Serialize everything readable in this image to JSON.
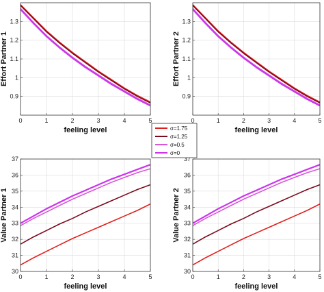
{
  "legend": {
    "entries": [
      "σ=1.75",
      "σ=1.25",
      "σ=0.5",
      "σ=0"
    ]
  },
  "colors": {
    "series": [
      "#e0201c",
      "#7a0a1e",
      "#d658d8",
      "#cc33ee"
    ]
  },
  "chart_data": [
    {
      "type": "line",
      "xlabel": "feeling level",
      "ylabel": "Effort Partner 1",
      "xlim": [
        0,
        5
      ],
      "ylim": [
        0.8,
        1.4
      ],
      "xticks": [
        "0",
        "1",
        "2",
        "3",
        "4",
        "5"
      ],
      "yticks": [
        "0.9",
        "1",
        "1.1",
        "1.2",
        "1.3"
      ],
      "grid": true,
      "x": [
        0,
        0.5,
        1,
        1.5,
        2,
        2.5,
        3,
        3.5,
        4,
        4.5,
        5
      ],
      "series": [
        {
          "name": "σ=1.75",
          "values": [
            1.39,
            1.32,
            1.25,
            1.19,
            1.135,
            1.085,
            1.035,
            0.99,
            0.945,
            0.905,
            0.87
          ]
        },
        {
          "name": "σ=1.25",
          "values": [
            1.385,
            1.315,
            1.245,
            1.185,
            1.13,
            1.08,
            1.03,
            0.985,
            0.94,
            0.9,
            0.865
          ]
        },
        {
          "name": "σ=0.5",
          "values": [
            1.37,
            1.295,
            1.225,
            1.165,
            1.11,
            1.06,
            1.015,
            0.97,
            0.93,
            0.89,
            0.855
          ]
        },
        {
          "name": "σ=0",
          "values": [
            1.365,
            1.29,
            1.22,
            1.16,
            1.105,
            1.055,
            1.01,
            0.965,
            0.925,
            0.885,
            0.85
          ]
        }
      ]
    },
    {
      "type": "line",
      "xlabel": "feeling level",
      "ylabel": "Effort Partner 2",
      "xlim": [
        0,
        5
      ],
      "ylim": [
        0.8,
        1.4
      ],
      "xticks": [
        "0",
        "1",
        "2",
        "3",
        "4",
        "5"
      ],
      "yticks": [
        "0.9",
        "1",
        "1.1",
        "1.2",
        "1.3"
      ],
      "grid": true,
      "x": [
        0,
        0.5,
        1,
        1.5,
        2,
        2.5,
        3,
        3.5,
        4,
        4.5,
        5
      ],
      "series": [
        {
          "name": "σ=1.75",
          "values": [
            1.39,
            1.32,
            1.25,
            1.19,
            1.135,
            1.085,
            1.035,
            0.99,
            0.945,
            0.905,
            0.87
          ]
        },
        {
          "name": "σ=1.25",
          "values": [
            1.385,
            1.315,
            1.245,
            1.185,
            1.13,
            1.08,
            1.03,
            0.985,
            0.94,
            0.9,
            0.865
          ]
        },
        {
          "name": "σ=0.5",
          "values": [
            1.37,
            1.295,
            1.225,
            1.165,
            1.11,
            1.06,
            1.015,
            0.97,
            0.93,
            0.89,
            0.855
          ]
        },
        {
          "name": "σ=0",
          "values": [
            1.365,
            1.29,
            1.22,
            1.16,
            1.105,
            1.055,
            1.01,
            0.965,
            0.925,
            0.885,
            0.85
          ]
        }
      ]
    },
    {
      "type": "line",
      "xlabel": "feeling level",
      "ylabel": "Value Partner 1",
      "xlim": [
        0,
        5
      ],
      "ylim": [
        30,
        37
      ],
      "xticks": [
        "0",
        "1",
        "2",
        "3",
        "4",
        "5"
      ],
      "yticks": [
        "30",
        "31",
        "32",
        "33",
        "34",
        "35",
        "36",
        "37"
      ],
      "grid": true,
      "x": [
        0,
        0.5,
        1,
        1.5,
        2,
        2.5,
        3,
        3.5,
        4,
        4.5,
        5
      ],
      "series": [
        {
          "name": "σ=1.75",
          "values": [
            30.4,
            30.85,
            31.25,
            31.65,
            32.05,
            32.4,
            32.75,
            33.1,
            33.45,
            33.8,
            34.2
          ]
        },
        {
          "name": "σ=1.25",
          "values": [
            31.7,
            32.15,
            32.55,
            32.95,
            33.3,
            33.7,
            34.05,
            34.4,
            34.75,
            35.1,
            35.4
          ]
        },
        {
          "name": "σ=0.5",
          "values": [
            32.85,
            33.3,
            33.7,
            34.1,
            34.5,
            34.85,
            35.2,
            35.55,
            35.85,
            36.15,
            36.4
          ]
        },
        {
          "name": "σ=0",
          "values": [
            33.0,
            33.45,
            33.9,
            34.3,
            34.7,
            35.05,
            35.4,
            35.75,
            36.05,
            36.35,
            36.65
          ]
        }
      ]
    },
    {
      "type": "line",
      "xlabel": "feeling level",
      "ylabel": "Value Partner 2",
      "xlim": [
        0,
        5
      ],
      "ylim": [
        30,
        37
      ],
      "xticks": [
        "0",
        "1",
        "2",
        "3",
        "4",
        "5"
      ],
      "yticks": [
        "30",
        "31",
        "32",
        "33",
        "34",
        "35",
        "36",
        "37"
      ],
      "grid": true,
      "x": [
        0,
        0.5,
        1,
        1.5,
        2,
        2.5,
        3,
        3.5,
        4,
        4.5,
        5
      ],
      "series": [
        {
          "name": "σ=1.75",
          "values": [
            30.4,
            30.85,
            31.25,
            31.65,
            32.05,
            32.4,
            32.75,
            33.1,
            33.45,
            33.8,
            34.2
          ]
        },
        {
          "name": "σ=1.25",
          "values": [
            31.7,
            32.15,
            32.55,
            32.95,
            33.3,
            33.7,
            34.05,
            34.4,
            34.75,
            35.1,
            35.4
          ]
        },
        {
          "name": "σ=0.5",
          "values": [
            32.85,
            33.3,
            33.7,
            34.1,
            34.5,
            34.85,
            35.2,
            35.55,
            35.85,
            36.15,
            36.4
          ]
        },
        {
          "name": "σ=0",
          "values": [
            33.0,
            33.45,
            33.9,
            34.3,
            34.7,
            35.05,
            35.4,
            35.75,
            36.05,
            36.35,
            36.65
          ]
        }
      ]
    }
  ]
}
